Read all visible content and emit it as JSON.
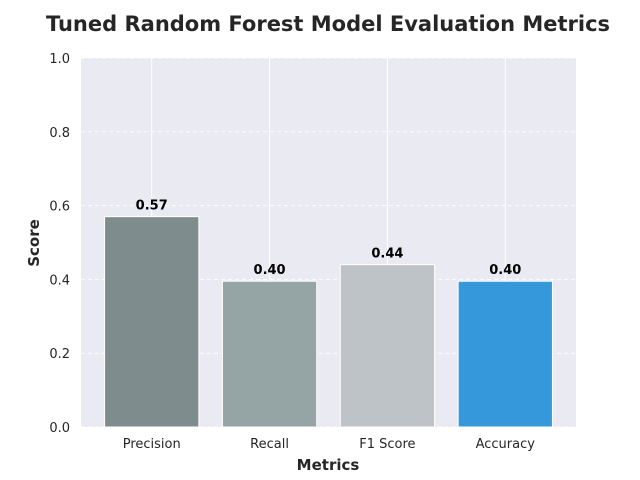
{
  "chart_data": {
    "type": "bar",
    "title": "Tuned Random Forest Model Evaluation Metrics",
    "xlabel": "Metrics",
    "ylabel": "Score",
    "categories": [
      "Precision",
      "Recall",
      "F1 Score",
      "Accuracy"
    ],
    "values": [
      0.57,
      0.395,
      0.44,
      0.395
    ],
    "data_labels": [
      "0.57",
      "0.40",
      "0.44",
      "0.40"
    ],
    "colors": [
      "#7f8c8d",
      "#95a5a6",
      "#bdc3c7",
      "#3498db"
    ],
    "ylim": [
      0,
      1.0
    ],
    "yticks": [
      0.0,
      0.2,
      0.4,
      0.6,
      0.8,
      1.0
    ],
    "ytick_labels": [
      "0.0",
      "0.2",
      "0.4",
      "0.6",
      "0.8",
      "1.0"
    ],
    "grid": true,
    "background_color": "#eaeaf2"
  }
}
